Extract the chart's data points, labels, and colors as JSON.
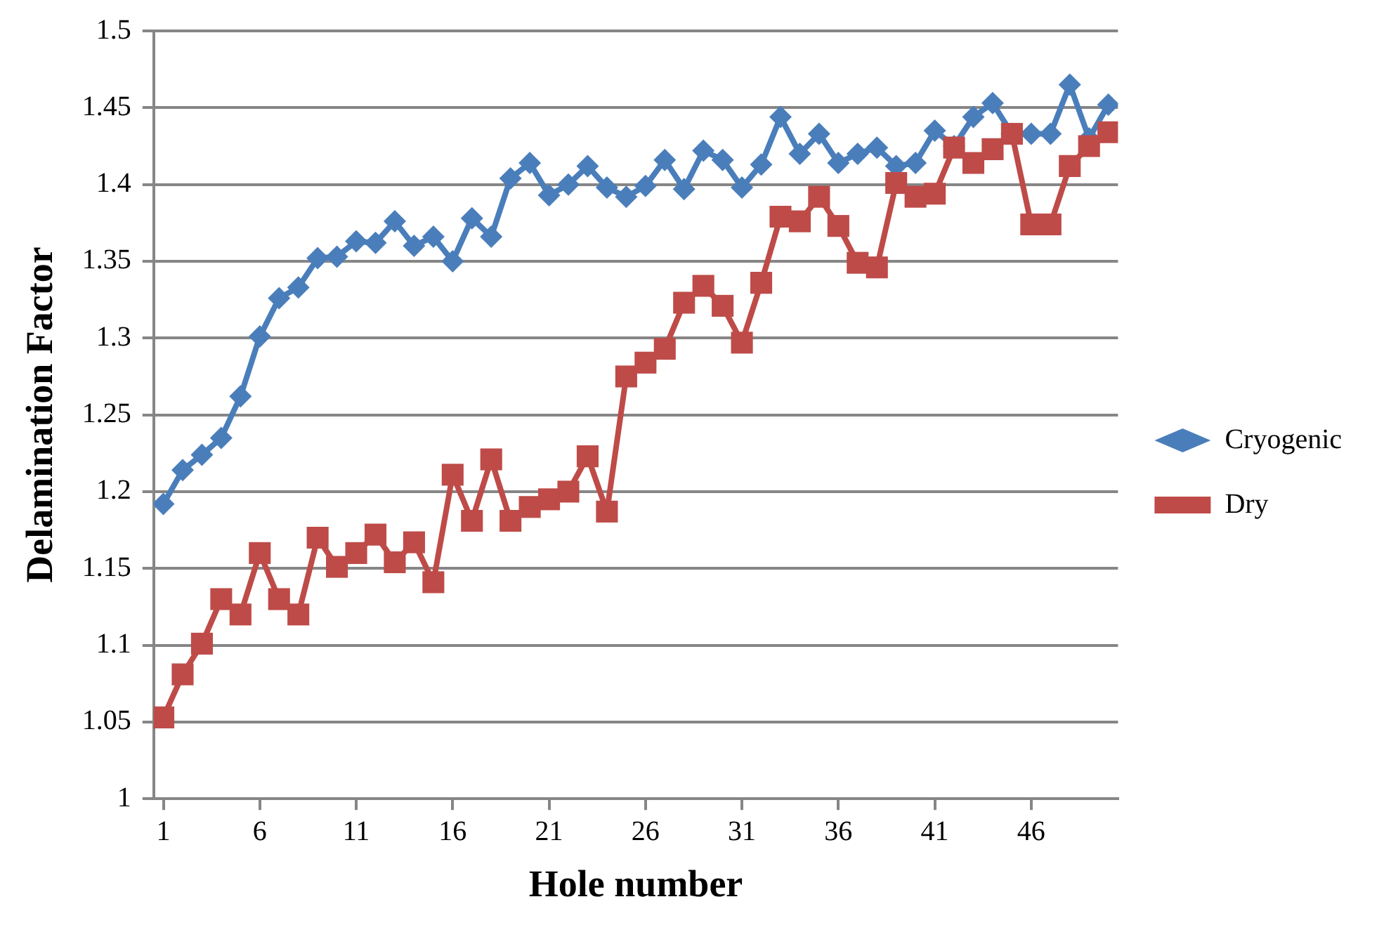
{
  "chart_data": {
    "type": "line",
    "xlabel": "Hole number",
    "ylabel": "Delamination Factor",
    "x": [
      1,
      2,
      3,
      4,
      5,
      6,
      7,
      8,
      9,
      10,
      11,
      12,
      13,
      14,
      15,
      16,
      17,
      18,
      19,
      20,
      21,
      22,
      23,
      24,
      25,
      26,
      27,
      28,
      29,
      30,
      31,
      32,
      33,
      34,
      35,
      36,
      37,
      38,
      39,
      40,
      41,
      42,
      43,
      44,
      45,
      46,
      47,
      48,
      49,
      50
    ],
    "xlim": [
      0.5,
      50.5
    ],
    "xticks": [
      1,
      6,
      11,
      16,
      21,
      26,
      31,
      36,
      41,
      46
    ],
    "ylim": [
      1,
      1.5
    ],
    "yticks": [
      1,
      1.05,
      1.1,
      1.15,
      1.2,
      1.25,
      1.3,
      1.35,
      1.4,
      1.45,
      1.5
    ],
    "grid": "y",
    "legend": "right",
    "series": [
      {
        "name": "Cryogenic",
        "color": "#4a7ebb",
        "marker": "diamond",
        "values": [
          1.192,
          1.214,
          1.224,
          1.235,
          1.262,
          1.301,
          1.326,
          1.333,
          1.352,
          1.353,
          1.363,
          1.362,
          1.376,
          1.36,
          1.366,
          1.35,
          1.378,
          1.366,
          1.404,
          1.414,
          1.393,
          1.4,
          1.412,
          1.398,
          1.392,
          1.399,
          1.416,
          1.397,
          1.422,
          1.416,
          1.398,
          1.413,
          1.444,
          1.42,
          1.433,
          1.414,
          1.42,
          1.424,
          1.412,
          1.414,
          1.435,
          1.425,
          1.444,
          1.453,
          1.433,
          1.433,
          1.433,
          1.465,
          1.43,
          1.452
        ]
      },
      {
        "name": "Dry",
        "color": "#be4b48",
        "marker": "square",
        "values": [
          1.053,
          1.081,
          1.101,
          1.13,
          1.12,
          1.16,
          1.13,
          1.12,
          1.17,
          1.151,
          1.16,
          1.172,
          1.154,
          1.167,
          1.141,
          1.211,
          1.181,
          1.221,
          1.181,
          1.19,
          1.195,
          1.2,
          1.223,
          1.187,
          1.275,
          1.284,
          1.293,
          1.323,
          1.334,
          1.321,
          1.297,
          1.336,
          1.379,
          1.376,
          1.392,
          1.373,
          1.349,
          1.346,
          1.401,
          1.392,
          1.394,
          1.424,
          1.414,
          1.423,
          1.433,
          1.374,
          1.374,
          1.412,
          1.425,
          1.434
        ]
      }
    ]
  }
}
